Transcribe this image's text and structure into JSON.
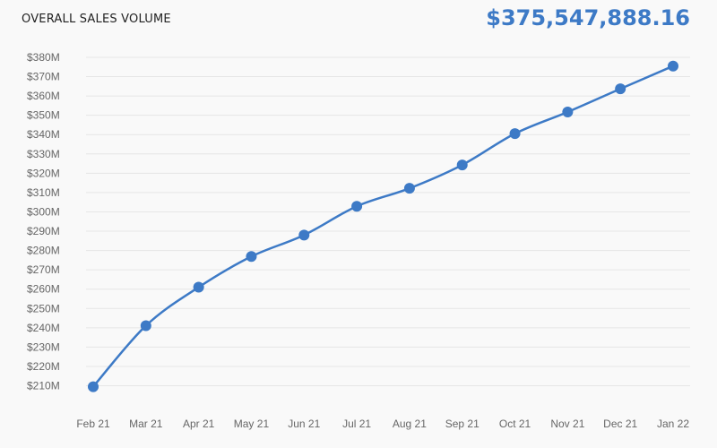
{
  "header": {
    "title": "OVERALL SALES VOLUME",
    "total": "$375,547,888.16"
  },
  "colors": {
    "line": "#3d7ac6",
    "grid": "#e6e6e6",
    "text": "#666666"
  },
  "chart_data": {
    "type": "line",
    "title": "OVERALL SALES VOLUME",
    "xlabel": "",
    "ylabel": "",
    "categories": [
      "Feb 21",
      "Mar 21",
      "Apr 21",
      "May 21",
      "Jun 21",
      "Jul 21",
      "Aug 21",
      "Sep 21",
      "Oct 21",
      "Nov 21",
      "Dec 21",
      "Jan 22"
    ],
    "values": [
      209.5,
      241.1,
      261.0,
      276.9,
      288.0,
      302.9,
      312.2,
      324.3,
      340.5,
      351.7,
      363.7,
      375.5
    ],
    "unit": "$M",
    "ylim": [
      210,
      380
    ],
    "yticks": [
      "$210M",
      "$220M",
      "$230M",
      "$240M",
      "$250M",
      "$260M",
      "$270M",
      "$280M",
      "$290M",
      "$300M",
      "$310M",
      "$320M",
      "$330M",
      "$340M",
      "$350M",
      "$360M",
      "$370M",
      "$380M"
    ],
    "grid": true,
    "legend": "none"
  }
}
